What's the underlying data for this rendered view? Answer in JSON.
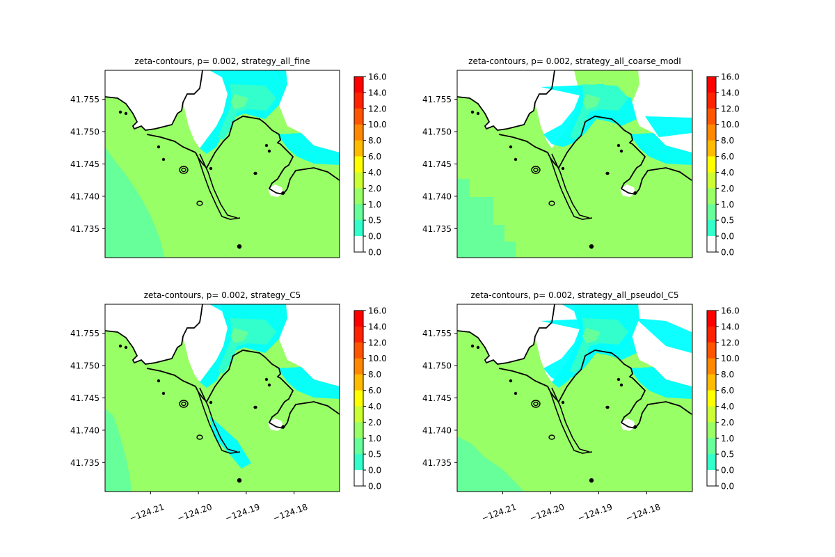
{
  "colors": {
    "land": "#99ff66",
    "land_low": "#66ff99",
    "water_shallow": "#00ffff",
    "water_mid": "#33ffcc",
    "dry": "#ffffff",
    "coast": "#000000"
  },
  "colorbar": {
    "ticks": [
      "16.0",
      "14.0",
      "12.0",
      "10.0",
      "8.0",
      "6.0",
      "4.0",
      "2.0",
      "1.0",
      "0.5",
      "0.0",
      "0.0"
    ],
    "colors": [
      "#ff0000",
      "#ff2200",
      "#ff5500",
      "#ff8800",
      "#ffbb00",
      "#ffff00",
      "#ccff33",
      "#99ff66",
      "#66ff99",
      "#33ffcc",
      "#00ffff",
      "#ffffff"
    ]
  },
  "chart_data": [
    {
      "type": "heatmap",
      "title": "zeta-contours, p= 0.002, strategy_all_fine",
      "xlim": [
        -124.2195,
        -124.1705
      ],
      "ylim": [
        41.7305,
        41.7595
      ],
      "yticks": [
        41.755,
        41.75,
        41.745,
        41.74,
        41.735
      ],
      "ytick_labels": [
        "41.755",
        "41.750",
        "41.745",
        "41.740",
        "41.735"
      ],
      "xticks": [],
      "xtick_labels": [],
      "variant": "fine"
    },
    {
      "type": "heatmap",
      "title": "zeta-contours, p= 0.002, strategy_all_coarse_modI",
      "xlim": [
        -124.2195,
        -124.1705
      ],
      "ylim": [
        41.7305,
        41.7595
      ],
      "yticks": [
        41.755,
        41.75,
        41.745,
        41.74,
        41.735
      ],
      "ytick_labels": [
        "41.755",
        "41.750",
        "41.745",
        "41.740",
        "41.735"
      ],
      "xticks": [],
      "xtick_labels": [],
      "variant": "coarse"
    },
    {
      "type": "heatmap",
      "title": "zeta-contours, p= 0.002, strategy_C5",
      "xlim": [
        -124.2195,
        -124.1705
      ],
      "ylim": [
        41.7305,
        41.7595
      ],
      "yticks": [
        41.755,
        41.75,
        41.745,
        41.74,
        41.735
      ],
      "ytick_labels": [
        "41.755",
        "41.750",
        "41.745",
        "41.740",
        "41.735"
      ],
      "xticks": [
        -124.21,
        -124.2,
        -124.19,
        -124.18
      ],
      "xtick_labels": [
        "−124.21",
        "−124.20",
        "−124.19",
        "−124.18"
      ],
      "variant": "c5"
    },
    {
      "type": "heatmap",
      "title": "zeta-contours, p= 0.002, strategy_all_pseudoI_C5",
      "xlim": [
        -124.2195,
        -124.1705
      ],
      "ylim": [
        41.7305,
        41.7595
      ],
      "yticks": [
        41.755,
        41.75,
        41.745,
        41.74,
        41.735
      ],
      "ytick_labels": [
        "41.755",
        "41.750",
        "41.745",
        "41.740",
        "41.735"
      ],
      "xticks": [
        -124.21,
        -124.2,
        -124.19,
        -124.18
      ],
      "xtick_labels": [
        "−124.21",
        "−124.20",
        "−124.19",
        "−124.18"
      ],
      "variant": "pseudo"
    }
  ]
}
